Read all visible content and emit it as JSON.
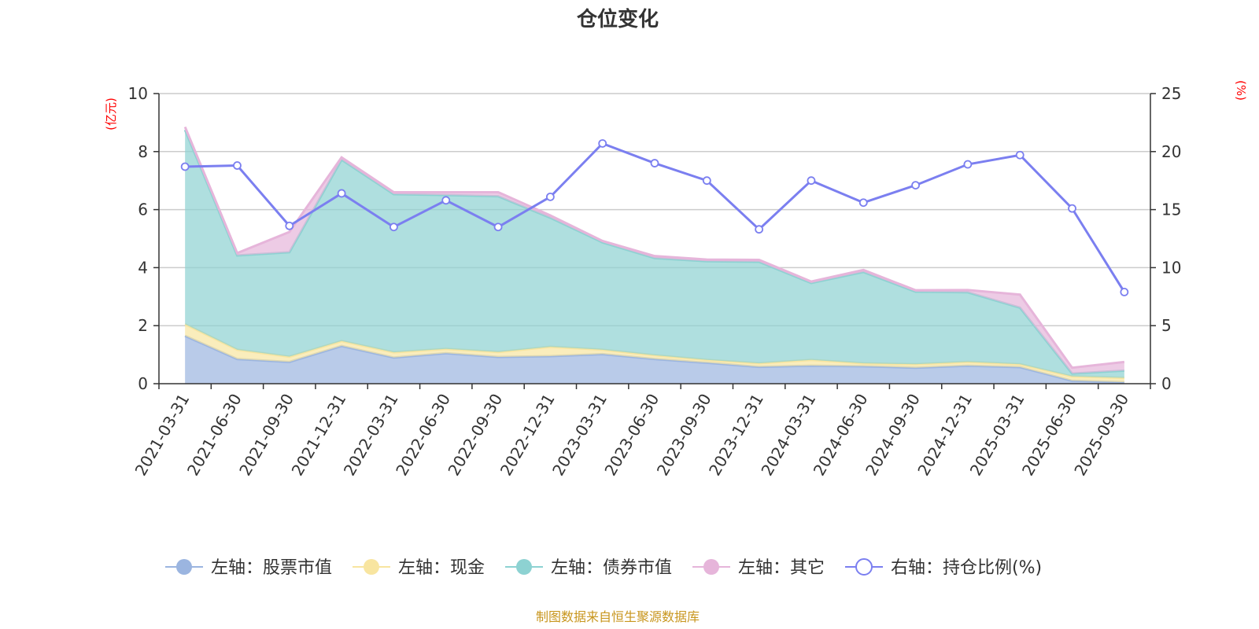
{
  "chart_data": {
    "type": "area",
    "title": "仓位变化",
    "left_axis_unit": "(亿元)",
    "right_axis_unit": "(%)",
    "categories": [
      "2021-03-31",
      "2021-06-30",
      "2021-09-30",
      "2021-12-31",
      "2022-03-31",
      "2022-06-30",
      "2022-09-30",
      "2022-12-31",
      "2023-03-31",
      "2023-06-30",
      "2023-09-30",
      "2023-12-31",
      "2024-03-31",
      "2024-06-30",
      "2024-09-30",
      "2024-12-31",
      "2025-03-31",
      "2025-06-30",
      "2025-09-30"
    ],
    "left_ylim": [
      0,
      10
    ],
    "left_yticks": [
      "0",
      "2",
      "4",
      "6",
      "8",
      "10"
    ],
    "right_ylim": [
      0,
      25
    ],
    "right_yticks": [
      "0",
      "5",
      "10",
      "15",
      "20",
      "25"
    ],
    "stacked_series": [
      {
        "name": "左轴：股票市值",
        "color": "#9bb5e0",
        "values": [
          1.65,
          0.85,
          0.75,
          1.3,
          0.9,
          1.05,
          0.92,
          0.95,
          1.02,
          0.85,
          0.72,
          0.58,
          0.62,
          0.6,
          0.55,
          0.62,
          0.57,
          0.1,
          0.05
        ]
      },
      {
        "name": "左轴：现金",
        "color": "#f8e5a0",
        "values": [
          0.4,
          0.32,
          0.18,
          0.17,
          0.18,
          0.15,
          0.17,
          0.32,
          0.15,
          0.13,
          0.1,
          0.12,
          0.2,
          0.1,
          0.12,
          0.13,
          0.1,
          0.15,
          0.15
        ]
      },
      {
        "name": "左轴：债券市值",
        "color": "#8dd2d2",
        "values": [
          6.7,
          3.25,
          3.6,
          6.25,
          5.45,
          5.3,
          5.37,
          4.45,
          3.7,
          3.35,
          3.4,
          3.5,
          2.65,
          3.15,
          2.5,
          2.4,
          1.95,
          0.1,
          0.25
        ]
      },
      {
        "name": "左轴：其它",
        "color": "#e6b5da",
        "values": [
          0.1,
          0.08,
          0.7,
          0.08,
          0.07,
          0.1,
          0.14,
          0.08,
          0.05,
          0.07,
          0.06,
          0.07,
          0.05,
          0.07,
          0.05,
          0.08,
          0.45,
          0.2,
          0.3
        ]
      }
    ],
    "line_series": {
      "name": "右轴：持仓比例(%)",
      "color": "#7b7ff0",
      "values": [
        18.7,
        18.8,
        13.6,
        16.4,
        13.5,
        15.8,
        13.5,
        16.1,
        20.7,
        19.0,
        17.5,
        13.3,
        17.5,
        15.6,
        17.1,
        18.9,
        19.7,
        15.1,
        7.9
      ]
    },
    "source": "制图数据来自恒生聚源数据库"
  }
}
